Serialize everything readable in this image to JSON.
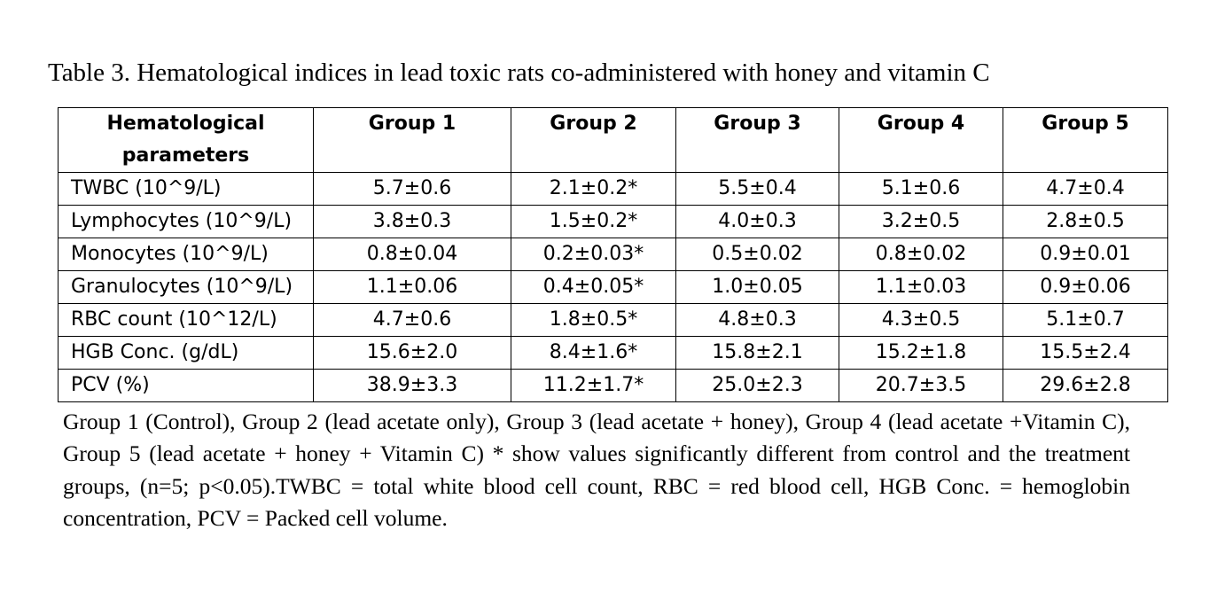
{
  "caption": "Table 3. Hematological indices in lead toxic rats co-administered with honey and vitamin C",
  "table": {
    "headers": [
      "Hematological parameters",
      "Group 1",
      "Group 2",
      "Group 3",
      "Group 4",
      "Group 5"
    ],
    "rows": [
      [
        "TWBC (10^9/L)",
        "5.7±0.6",
        "2.1±0.2*",
        "5.5±0.4",
        "5.1±0.6",
        "4.7±0.4"
      ],
      [
        "Lymphocytes (10^9/L)",
        "3.8±0.3",
        "1.5±0.2*",
        "4.0±0.3",
        "3.2±0.5",
        "2.8±0.5"
      ],
      [
        "Monocytes (10^9/L)",
        "0.8±0.04",
        "0.2±0.03*",
        "0.5±0.02",
        "0.8±0.02",
        "0.9±0.01"
      ],
      [
        "Granulocytes (10^9/L)",
        "1.1±0.06",
        "0.4±0.05*",
        "1.0±0.05",
        "1.1±0.03",
        "0.9±0.06"
      ],
      [
        "RBC count (10^12/L)",
        "4.7±0.6",
        "1.8±0.5*",
        "4.8±0.3",
        "4.3±0.5",
        "5.1±0.7"
      ],
      [
        "HGB Conc. (g/dL)",
        "15.6±2.0",
        "8.4±1.6*",
        "15.8±2.1",
        "15.2±1.8",
        "15.5±2.4"
      ],
      [
        "PCV (%)",
        "38.9±3.3",
        "11.2±1.7*",
        "25.0±2.3",
        "20.7±3.5",
        "29.6±2.8"
      ]
    ]
  },
  "footnote": "Group 1 (Control), Group 2 (lead acetate only), Group 3 (lead acetate + honey), Group 4 (lead acetate +Vitamin C), Group 5 (lead acetate + honey + Vitamin C) * show values significantly different from control and the treatment groups, (n=5; p<0.05).TWBC = total white blood cell count, RBC = red blood cell, HGB Conc. = hemoglobin concentration, PCV = Packed cell volume."
}
